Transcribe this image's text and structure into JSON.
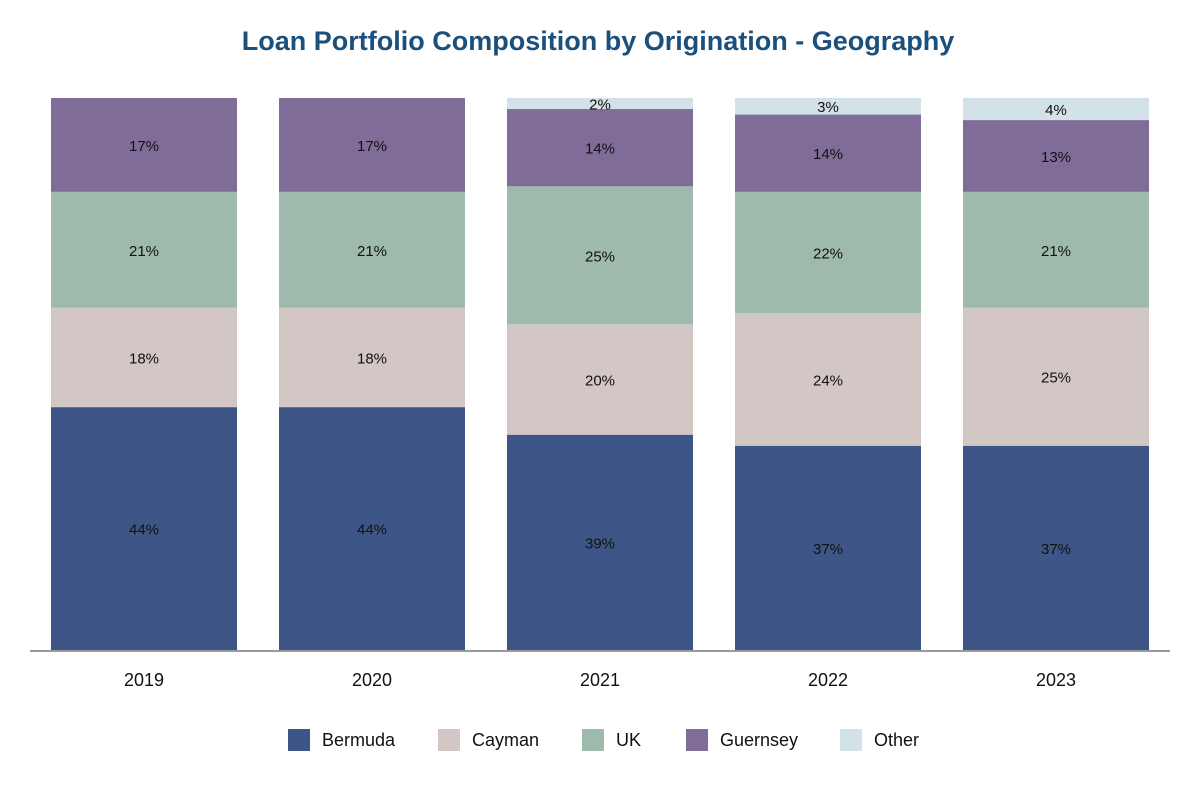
{
  "chart_data": {
    "type": "stacked_bar",
    "title": "Loan Portfolio Composition by Origination - Geography",
    "categories": [
      "2019",
      "2020",
      "2021",
      "2022",
      "2023"
    ],
    "ylim": [
      0,
      100
    ],
    "series": [
      {
        "name": "Bermuda",
        "color": "#3e5687",
        "values": [
          44,
          44,
          39,
          37,
          37
        ],
        "value_labels": [
          "44%",
          "44%",
          "39%",
          "37%",
          "37%"
        ]
      },
      {
        "name": "Cayman",
        "color": "#d3c7c5",
        "values": [
          18,
          18,
          20,
          24,
          25
        ],
        "value_labels": [
          "18%",
          "18%",
          "20%",
          "24%",
          "25%"
        ]
      },
      {
        "name": "UK",
        "color": "#9dbaad",
        "values": [
          21,
          21,
          25,
          22,
          21
        ],
        "value_labels": [
          "21%",
          "21%",
          "25%",
          "22%",
          "21%"
        ]
      },
      {
        "name": "Guernsey",
        "color": "#7f6c99",
        "values": [
          17,
          17,
          14,
          14,
          13
        ],
        "value_labels": [
          "17%",
          "17%",
          "14%",
          "14%",
          "13%"
        ]
      },
      {
        "name": "Other",
        "color": "#d3e1e8",
        "values": [
          0,
          0,
          2,
          3,
          4
        ],
        "value_labels": [
          null,
          null,
          "2%",
          "3%",
          "4%"
        ]
      }
    ]
  }
}
